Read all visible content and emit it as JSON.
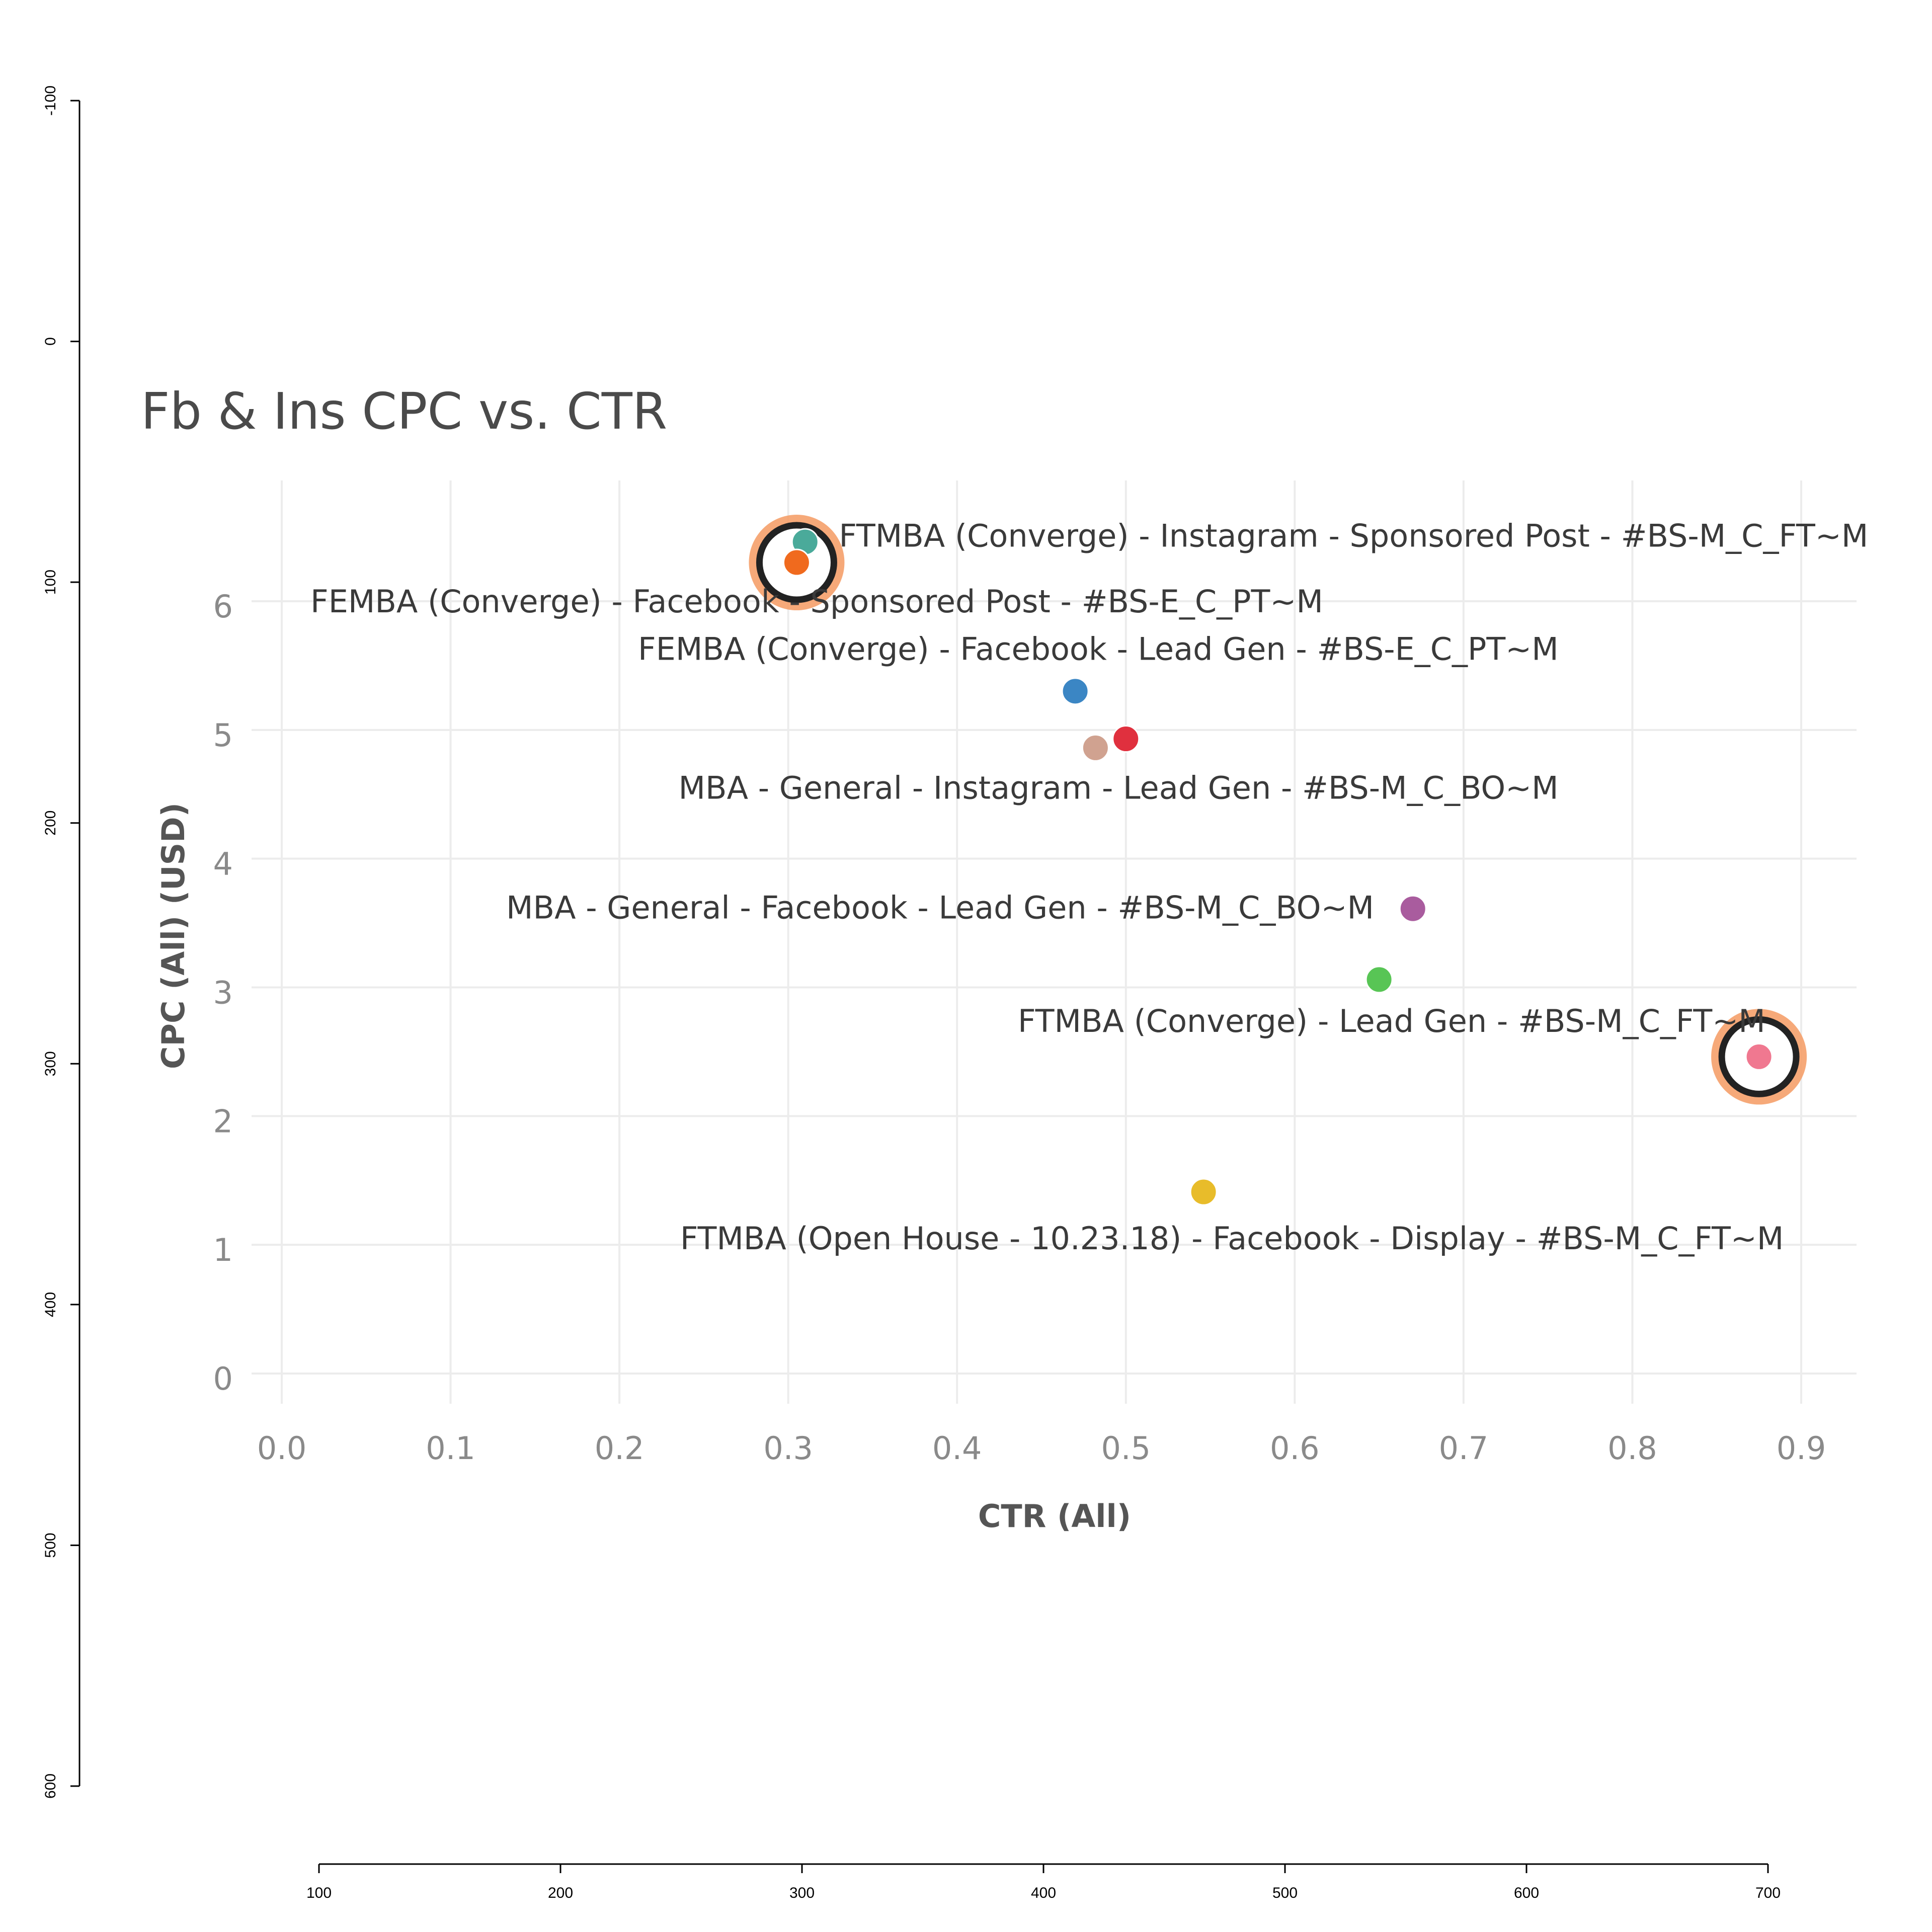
{
  "frame_axes": {
    "left": {
      "ticks": [
        -100,
        0,
        100,
        200,
        300,
        400,
        500,
        600
      ],
      "range": [
        -100,
        600
      ]
    },
    "bottom": {
      "ticks": [
        100,
        200,
        300,
        400,
        500,
        600,
        700
      ],
      "range": [
        100,
        700
      ]
    }
  },
  "chart_data": {
    "type": "scatter",
    "title": "Fb & Ins CPC vs. CTR",
    "xlabel": "CTR (All)",
    "ylabel": "CPC (All) (USD)",
    "xlim": [
      0.0,
      0.93
    ],
    "ylim": [
      0,
      6.9
    ],
    "xticks": [
      0.0,
      0.1,
      0.2,
      0.3,
      0.4,
      0.5,
      0.6,
      0.7,
      0.8,
      0.9
    ],
    "xtick_labels": [
      "0.0",
      "0.1",
      "0.2",
      "0.3",
      "0.4",
      "0.5",
      "0.6",
      "0.7",
      "0.8",
      "0.9"
    ],
    "yticks": [
      0,
      1,
      2,
      3,
      4,
      5,
      6
    ],
    "ytick_labels": [
      "0",
      "1",
      "2",
      "3",
      "4",
      "5",
      "6"
    ],
    "grid": true,
    "points": [
      {
        "x": 0.31,
        "y": 6.5,
        "color": "#4aaa9a",
        "highlighted": false
      },
      {
        "x": 0.305,
        "y": 6.34,
        "color": "#f06a1e",
        "highlighted": true
      },
      {
        "x": 0.47,
        "y": 5.34,
        "color": "#3b86c4",
        "highlighted": false
      },
      {
        "x": 0.5,
        "y": 4.97,
        "color": "#e0303e",
        "highlighted": false
      },
      {
        "x": 0.482,
        "y": 4.9,
        "color": "#d0a290",
        "highlighted": false
      },
      {
        "x": 0.67,
        "y": 3.65,
        "color": "#a95c9e",
        "highlighted": false
      },
      {
        "x": 0.65,
        "y": 3.1,
        "color": "#58c555",
        "highlighted": false
      },
      {
        "x": 0.875,
        "y": 2.5,
        "color": "#f07890",
        "highlighted": true
      },
      {
        "x": 0.546,
        "y": 1.45,
        "color": "#e8bc2a",
        "highlighted": false
      }
    ],
    "annotations": [
      {
        "text": "FTMBA (Converge) - Instagram - Sponsored Post - #BS-M_C_FT~M",
        "x": 0.33,
        "y": 6.55,
        "anchor": "start"
      },
      {
        "text": "FEMBA (Converge) - Facebook - Sponsored Post - #BS-E_C_PT~M",
        "x": 0.017,
        "y": 6.04,
        "anchor": "start"
      },
      {
        "text": "FEMBA (Converge) - Facebook - Lead Gen - #BS-E_C_PT~M",
        "x": 0.211,
        "y": 5.67,
        "anchor": "start"
      },
      {
        "text": "MBA - General - Instagram - Lead Gen - #BS-M_C_BO~M",
        "x": 0.235,
        "y": 4.59,
        "anchor": "start"
      },
      {
        "text": "MBA - General - Facebook - Lead Gen - #BS-M_C_BO~M",
        "x": 0.647,
        "y": 3.66,
        "anchor": "end"
      },
      {
        "text": "FTMBA (Converge) - Lead Gen - #BS-M_C_FT~M",
        "x": 0.436,
        "y": 2.78,
        "anchor": "start"
      },
      {
        "text": "FTMBA (Open House - 10.23.18) - Facebook - Display - #BS-M_C_FT~M",
        "x": 0.236,
        "y": 1.09,
        "anchor": "start"
      }
    ]
  }
}
